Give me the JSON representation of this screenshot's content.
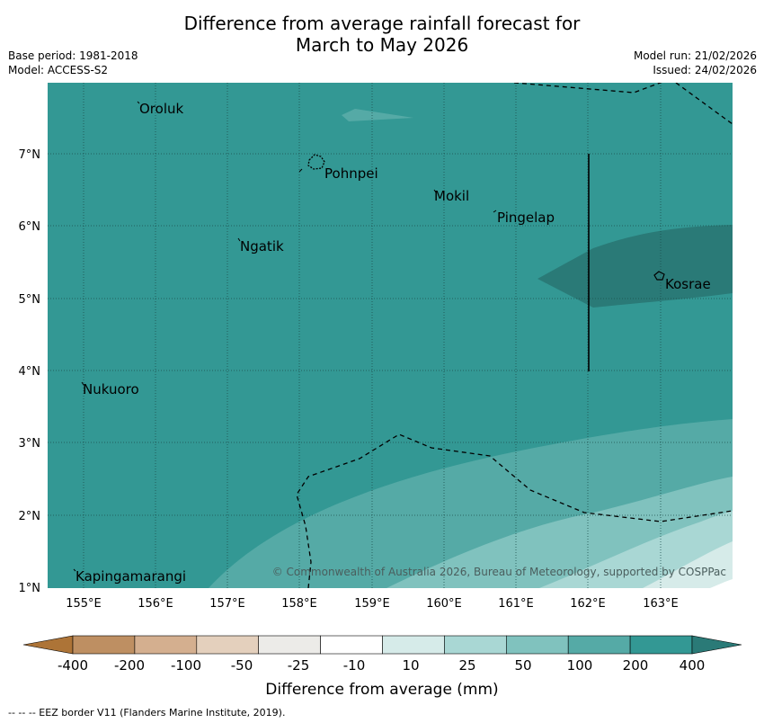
{
  "title": {
    "line1": "Difference from average rainfall forecast for",
    "line2": "March to May 2026"
  },
  "meta": {
    "base_period": "Base period: 1981-2018",
    "model": "Model: ACCESS-S2",
    "model_run": "Model run: 21/02/2026",
    "issued": "Issued: 24/02/2026"
  },
  "map": {
    "lon_labels": [
      "155°E",
      "156°E",
      "157°E",
      "158°E",
      "159°E",
      "160°E",
      "161°E",
      "162°E",
      "163°E"
    ],
    "lat_labels": [
      "7°N",
      "6°N",
      "5°N",
      "4°N",
      "3°N",
      "2°N",
      "1°N"
    ],
    "places": [
      "Oroluk",
      "Pohnpei",
      "Mokil",
      "Pingelap",
      "Ngatik",
      "Kosrae",
      "Nukuoro",
      "Kapingamarangi"
    ],
    "copyright": "© Commonwealth of Australia 2026, Bureau of Meteorology, supported by COSPPac"
  },
  "legend": {
    "tick_labels": [
      "-400",
      "-200",
      "-100",
      "-50",
      "-25",
      "-10",
      "10",
      "25",
      "50",
      "100",
      "200",
      "400"
    ],
    "colors": [
      "#ad7437",
      "#be8f62",
      "#d4af8f",
      "#e4d0bd",
      "#ecebe8",
      "#ffffff",
      "#d6ebe9",
      "#a9d7d4",
      "#80c2be",
      "#55aaa6",
      "#339894",
      "#2a7a77"
    ],
    "title": "Difference from average (mm)"
  },
  "footnote": "--  --  -- EEZ border V11 (Flanders Marine Institute, 2019)."
}
